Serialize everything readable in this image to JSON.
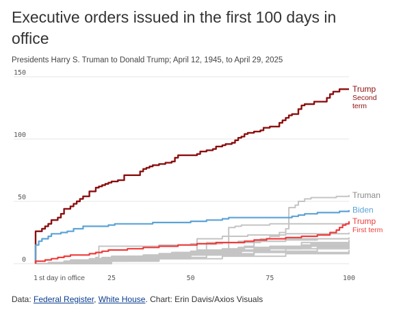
{
  "title": "Executive orders issued in the first 100 days in office",
  "subtitle": "Presidents Harry S. Truman to Donald Trump; April 12, 1945, to April 29, 2025",
  "footer": {
    "prefix": "Data: ",
    "link1": "Federal Register",
    "sep": ", ",
    "link2": "White House",
    "suffix": ". Chart: Erin Davis/Axios Visuals"
  },
  "colors": {
    "trump_second": "#8b0e0e",
    "trump_first": "#ee3b3b",
    "biden": "#5ba3d6",
    "gray": "#c4c4c4",
    "grid": "#e6e6e6",
    "label_gray": "#888888"
  },
  "chart_data": {
    "type": "line",
    "x_ticks": [
      1,
      25,
      50,
      75,
      100
    ],
    "y_ticks": [
      0,
      50,
      100,
      150
    ],
    "xlim": [
      1,
      100
    ],
    "ylim": [
      0,
      150
    ],
    "x_annotation": "st day in office",
    "grid": true,
    "series": [
      {
        "name": "Trump Second term",
        "label_lines": [
          "Trump",
          "Second",
          "term"
        ],
        "color": "#8b0e0e",
        "width": 2.4,
        "points": [
          [
            1,
            0
          ],
          [
            1,
            26
          ],
          [
            3,
            28
          ],
          [
            4,
            30
          ],
          [
            5,
            32
          ],
          [
            6,
            35
          ],
          [
            8,
            37
          ],
          [
            9,
            40
          ],
          [
            10,
            44
          ],
          [
            12,
            46
          ],
          [
            13,
            48
          ],
          [
            14,
            50
          ],
          [
            15,
            52
          ],
          [
            16,
            54
          ],
          [
            18,
            58
          ],
          [
            20,
            61
          ],
          [
            21,
            62
          ],
          [
            22,
            63
          ],
          [
            23,
            64
          ],
          [
            24,
            65
          ],
          [
            25,
            66
          ],
          [
            27,
            67
          ],
          [
            29,
            71
          ],
          [
            34,
            74
          ],
          [
            35,
            76
          ],
          [
            36,
            77
          ],
          [
            37,
            78
          ],
          [
            38,
            79
          ],
          [
            40,
            80
          ],
          [
            42,
            81
          ],
          [
            44,
            82
          ],
          [
            45,
            85
          ],
          [
            46,
            87
          ],
          [
            52,
            88
          ],
          [
            53,
            90
          ],
          [
            55,
            91
          ],
          [
            57,
            92
          ],
          [
            58,
            94
          ],
          [
            60,
            95
          ],
          [
            61,
            96
          ],
          [
            63,
            97
          ],
          [
            64,
            99
          ],
          [
            65,
            101
          ],
          [
            66,
            102
          ],
          [
            67,
            104
          ],
          [
            68,
            105
          ],
          [
            70,
            106
          ],
          [
            72,
            107
          ],
          [
            73,
            109
          ],
          [
            75,
            110
          ],
          [
            78,
            113
          ],
          [
            79,
            115
          ],
          [
            80,
            117
          ],
          [
            81,
            119
          ],
          [
            82,
            120
          ],
          [
            84,
            124
          ],
          [
            85,
            127
          ],
          [
            86,
            128
          ],
          [
            89,
            130
          ],
          [
            93,
            133
          ],
          [
            94,
            136
          ],
          [
            95,
            138
          ],
          [
            97,
            140
          ],
          [
            100,
            140
          ]
        ]
      },
      {
        "name": "Truman",
        "label_lines": [
          "Truman"
        ],
        "color": "#c4c4c4",
        "width": 2,
        "points": [
          [
            1,
            0
          ],
          [
            5,
            1
          ],
          [
            10,
            2
          ],
          [
            15,
            3
          ],
          [
            20,
            4
          ],
          [
            25,
            5
          ],
          [
            30,
            6
          ],
          [
            40,
            8
          ],
          [
            50,
            10
          ],
          [
            60,
            12
          ],
          [
            67,
            14
          ],
          [
            70,
            17
          ],
          [
            72,
            20
          ],
          [
            75,
            22
          ],
          [
            78,
            25
          ],
          [
            80,
            28
          ],
          [
            81,
            45
          ],
          [
            83,
            47
          ],
          [
            84,
            50
          ],
          [
            86,
            52
          ],
          [
            88,
            53
          ],
          [
            92,
            53
          ],
          [
            96,
            54
          ],
          [
            100,
            55
          ]
        ]
      },
      {
        "name": "Biden",
        "label_lines": [
          "Biden"
        ],
        "color": "#5ba3d6",
        "width": 2.2,
        "points": [
          [
            1,
            0
          ],
          [
            1,
            15
          ],
          [
            2,
            18
          ],
          [
            3,
            20
          ],
          [
            5,
            22
          ],
          [
            6,
            24
          ],
          [
            9,
            25
          ],
          [
            11,
            26
          ],
          [
            13,
            28
          ],
          [
            16,
            30
          ],
          [
            24,
            31
          ],
          [
            26,
            32
          ],
          [
            38,
            33
          ],
          [
            50,
            34
          ],
          [
            55,
            35
          ],
          [
            60,
            36
          ],
          [
            62,
            37
          ],
          [
            80,
            37
          ],
          [
            82,
            38
          ],
          [
            84,
            39
          ],
          [
            86,
            40
          ],
          [
            90,
            41
          ],
          [
            97,
            42
          ],
          [
            100,
            43
          ]
        ]
      },
      {
        "name": "Trump First term",
        "label_lines": [
          "Trump",
          "First term"
        ],
        "color": "#ee3b3b",
        "width": 2.2,
        "points": [
          [
            1,
            0
          ],
          [
            1,
            2
          ],
          [
            4,
            3
          ],
          [
            6,
            4
          ],
          [
            8,
            5
          ],
          [
            10,
            6
          ],
          [
            12,
            7
          ],
          [
            18,
            8
          ],
          [
            20,
            9
          ],
          [
            22,
            10
          ],
          [
            24,
            11
          ],
          [
            30,
            12
          ],
          [
            35,
            13
          ],
          [
            40,
            14
          ],
          [
            46,
            15
          ],
          [
            52,
            16
          ],
          [
            58,
            17
          ],
          [
            67,
            18
          ],
          [
            70,
            19
          ],
          [
            74,
            20
          ],
          [
            80,
            21
          ],
          [
            85,
            22
          ],
          [
            90,
            23
          ],
          [
            94,
            25
          ],
          [
            96,
            27
          ],
          [
            97,
            29
          ],
          [
            98,
            31
          ],
          [
            99,
            32
          ],
          [
            100,
            34
          ]
        ]
      },
      {
        "name": "",
        "color": "#c4c4c4",
        "width": 2,
        "points": [
          [
            1,
            0
          ],
          [
            20,
            5
          ],
          [
            21,
            14
          ],
          [
            40,
            15
          ],
          [
            50,
            16
          ],
          [
            60,
            17
          ],
          [
            70,
            18
          ],
          [
            80,
            19
          ],
          [
            90,
            20
          ],
          [
            100,
            21
          ]
        ]
      },
      {
        "name": "",
        "color": "#c4c4c4",
        "width": 2,
        "points": [
          [
            1,
            0
          ],
          [
            10,
            2
          ],
          [
            20,
            3
          ],
          [
            30,
            6
          ],
          [
            50,
            9
          ],
          [
            55,
            17
          ],
          [
            65,
            18
          ],
          [
            80,
            20
          ],
          [
            100,
            21
          ]
        ]
      },
      {
        "name": "",
        "color": "#c4c4c4",
        "width": 2,
        "points": [
          [
            1,
            0
          ],
          [
            20,
            4
          ],
          [
            40,
            7
          ],
          [
            60,
            10
          ],
          [
            62,
            29
          ],
          [
            64,
            30
          ],
          [
            66,
            31
          ],
          [
            75,
            32
          ],
          [
            100,
            33
          ]
        ]
      },
      {
        "name": "",
        "color": "#c4c4c4",
        "width": 2,
        "points": [
          [
            1,
            0
          ],
          [
            12,
            3
          ],
          [
            30,
            6
          ],
          [
            48,
            9
          ],
          [
            52,
            20
          ],
          [
            60,
            22
          ],
          [
            68,
            23
          ],
          [
            80,
            24
          ],
          [
            100,
            25
          ]
        ]
      },
      {
        "name": "",
        "color": "#c4c4c4",
        "width": 2,
        "points": [
          [
            1,
            0
          ],
          [
            20,
            4
          ],
          [
            40,
            8
          ],
          [
            60,
            10
          ],
          [
            80,
            12
          ],
          [
            100,
            14
          ]
        ]
      },
      {
        "name": "",
        "color": "#c4c4c4",
        "width": 2,
        "points": [
          [
            1,
            0
          ],
          [
            15,
            3
          ],
          [
            30,
            5
          ],
          [
            50,
            7
          ],
          [
            70,
            9
          ],
          [
            100,
            11
          ]
        ]
      },
      {
        "name": "",
        "color": "#c4c4c4",
        "width": 2,
        "points": [
          [
            1,
            0
          ],
          [
            10,
            2
          ],
          [
            30,
            4
          ],
          [
            50,
            7
          ],
          [
            70,
            10
          ],
          [
            90,
            13
          ],
          [
            100,
            15
          ]
        ]
      },
      {
        "name": "",
        "color": "#c4c4c4",
        "width": 2,
        "points": [
          [
            1,
            0
          ],
          [
            10,
            1
          ],
          [
            25,
            3
          ],
          [
            40,
            5
          ],
          [
            55,
            8
          ],
          [
            70,
            12
          ],
          [
            85,
            15
          ],
          [
            100,
            17
          ]
        ]
      },
      {
        "name": "",
        "color": "#c4c4c4",
        "width": 2,
        "points": [
          [
            1,
            0
          ],
          [
            20,
            2
          ],
          [
            40,
            4
          ],
          [
            60,
            6
          ],
          [
            80,
            8
          ],
          [
            100,
            10
          ]
        ]
      },
      {
        "name": "",
        "color": "#c4c4c4",
        "width": 2,
        "points": [
          [
            1,
            0
          ],
          [
            25,
            6
          ],
          [
            45,
            9
          ],
          [
            65,
            13
          ],
          [
            85,
            17
          ],
          [
            100,
            19
          ]
        ]
      },
      {
        "name": "",
        "color": "#c4c4c4",
        "width": 2,
        "points": [
          [
            1,
            0
          ],
          [
            18,
            4
          ],
          [
            35,
            7
          ],
          [
            52,
            11
          ],
          [
            75,
            14
          ],
          [
            100,
            16
          ]
        ]
      },
      {
        "name": "",
        "color": "#c4c4c4",
        "width": 2,
        "points": [
          [
            1,
            0
          ],
          [
            22,
            5
          ],
          [
            44,
            9
          ],
          [
            66,
            13
          ],
          [
            88,
            16
          ],
          [
            100,
            18
          ]
        ]
      }
    ]
  }
}
